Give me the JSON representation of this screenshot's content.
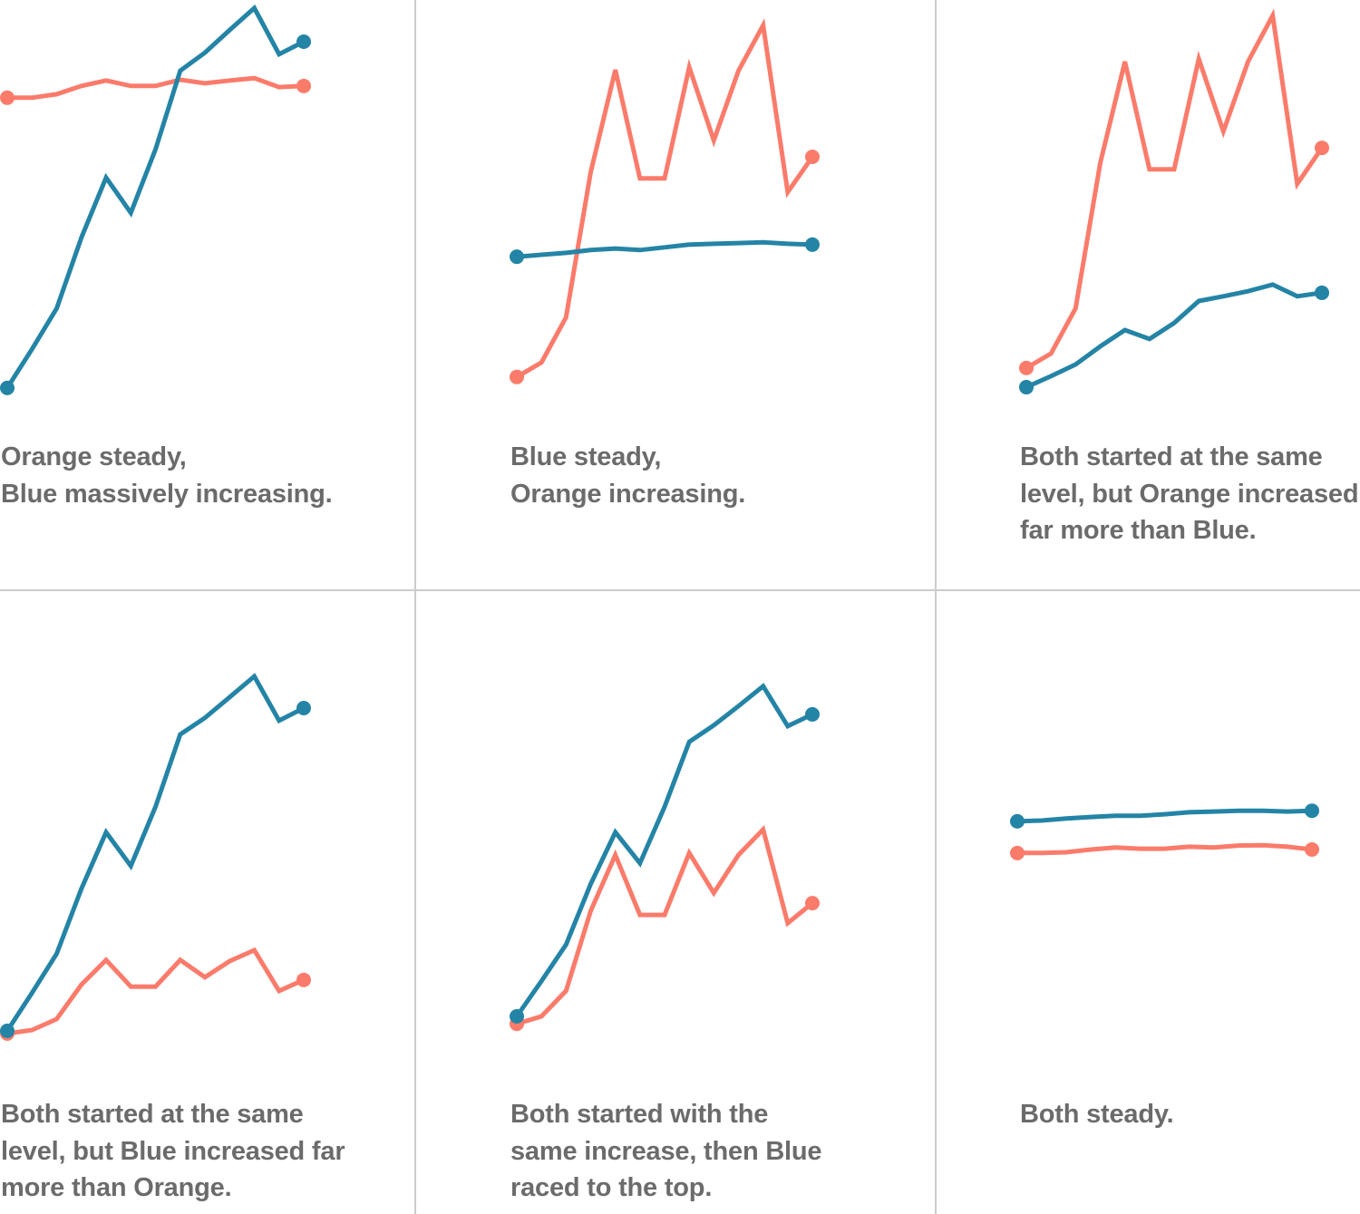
{
  "colors": {
    "blue": "#2484a6",
    "orange": "#fb7b6b",
    "text": "#6b6b6b",
    "divider": "#cccccc"
  },
  "chart_data": [
    {
      "type": "line",
      "title": "",
      "caption": [
        "Orange steady,",
        "Blue massively increasing."
      ],
      "x": [
        1,
        2,
        3,
        4,
        5,
        6,
        7,
        8,
        9,
        10,
        11,
        12,
        13
      ],
      "ylim": [
        0,
        100
      ],
      "series": [
        {
          "name": "Orange",
          "color": "#fb7b6b",
          "values": [
            76.9,
            76.9,
            77.8,
            79.9,
            81.3,
            79.9,
            79.9,
            81.5,
            80.6,
            81.3,
            81.9,
            79.6,
            79.9
          ]
        },
        {
          "name": "Blue",
          "color": "#2484a6",
          "values": [
            2.8,
            12.7,
            23.1,
            41.2,
            56.5,
            47.5,
            63.7,
            83.8,
            88.4,
            94.2,
            99.8,
            88.0,
            91.2
          ]
        }
      ]
    },
    {
      "type": "line",
      "title": "",
      "caption": [
        "Blue steady,",
        "Orange increasing."
      ],
      "x": [
        1,
        2,
        3,
        4,
        5,
        6,
        7,
        8,
        9,
        10,
        11,
        12,
        13
      ],
      "ylim": [
        0,
        100
      ],
      "series": [
        {
          "name": "Orange",
          "color": "#fb7b6b",
          "values": [
            5.6,
            9.3,
            20.8,
            57.9,
            84.0,
            56.3,
            56.3,
            84.7,
            66.0,
            83.8,
            95.4,
            52.8,
            61.8
          ]
        },
        {
          "name": "Blue",
          "color": "#2484a6",
          "values": [
            36.3,
            36.8,
            37.3,
            38.0,
            38.4,
            38.0,
            38.7,
            39.4,
            39.6,
            39.8,
            40.0,
            39.6,
            39.4
          ]
        }
      ]
    },
    {
      "type": "line",
      "title": "",
      "caption": [
        "Both started at the same",
        "level, but Orange increased",
        "far more than Blue."
      ],
      "x": [
        1,
        2,
        3,
        4,
        5,
        6,
        7,
        8,
        9,
        10,
        11,
        12,
        13
      ],
      "ylim": [
        0,
        100
      ],
      "series": [
        {
          "name": "Orange",
          "color": "#fb7b6b",
          "values": [
            7.9,
            11.6,
            23.1,
            60.2,
            86.1,
            58.6,
            58.6,
            86.8,
            68.3,
            86.1,
            97.9,
            54.9,
            64.1
          ]
        },
        {
          "name": "Blue",
          "color": "#2484a6",
          "values": [
            3.0,
            5.8,
            8.8,
            13.4,
            17.6,
            15.3,
            19.4,
            25.0,
            26.2,
            27.5,
            29.2,
            26.2,
            27.1
          ]
        }
      ]
    },
    {
      "type": "line",
      "title": "",
      "caption": [
        "Both started at the same",
        "level, but Blue increased far",
        "more than Orange."
      ],
      "x": [
        1,
        2,
        3,
        4,
        5,
        6,
        7,
        8,
        9,
        10,
        11,
        12,
        13
      ],
      "ylim": [
        0,
        100
      ],
      "series": [
        {
          "name": "Orange",
          "color": "#fb7b6b",
          "values": [
            0,
            0.9,
            3.7,
            12.5,
            18.8,
            12.0,
            12.0,
            18.8,
            14.4,
            18.5,
            21.3,
            10.9,
            13.7
          ]
        },
        {
          "name": "Blue",
          "color": "#2484a6",
          "values": [
            0.7,
            10.4,
            20.4,
            37.0,
            51.4,
            42.8,
            57.9,
            76.4,
            80.6,
            85.9,
            91.2,
            79.9,
            83.1
          ]
        }
      ]
    },
    {
      "type": "line",
      "title": "",
      "caption": [
        "Both started with the",
        "same increase, then Blue",
        "raced to the top."
      ],
      "x": [
        1,
        2,
        3,
        4,
        5,
        6,
        7,
        8,
        9,
        10,
        11,
        12,
        13
      ],
      "ylim": [
        0,
        100
      ],
      "series": [
        {
          "name": "Orange",
          "color": "#fb7b6b",
          "values": [
            2.5,
            4.4,
            10.9,
            31.3,
            45.6,
            30.3,
            30.3,
            46.1,
            35.9,
            45.6,
            52.1,
            28.2,
            33.3
          ]
        },
        {
          "name": "Blue",
          "color": "#2484a6",
          "values": [
            4.4,
            13.4,
            22.7,
            38.2,
            51.4,
            43.5,
            57.9,
            74.5,
            78.7,
            83.6,
            88.7,
            78.5,
            81.5
          ]
        }
      ]
    },
    {
      "type": "line",
      "title": "",
      "caption": [
        "Both steady."
      ],
      "x": [
        1,
        2,
        3,
        4,
        5,
        6,
        7,
        8,
        9,
        10,
        11,
        12,
        13
      ],
      "ylim": [
        0,
        100
      ],
      "series": [
        {
          "name": "Orange",
          "color": "#fb7b6b",
          "values": [
            46.1,
            46.1,
            46.3,
            47.0,
            47.5,
            47.2,
            47.2,
            47.7,
            47.5,
            48.0,
            48.1,
            47.7,
            47.0
          ]
        },
        {
          "name": "Blue",
          "color": "#2484a6",
          "values": [
            54.2,
            54.4,
            54.9,
            55.3,
            55.6,
            55.6,
            56.0,
            56.5,
            56.7,
            56.9,
            56.9,
            56.7,
            56.9
          ]
        }
      ]
    }
  ]
}
